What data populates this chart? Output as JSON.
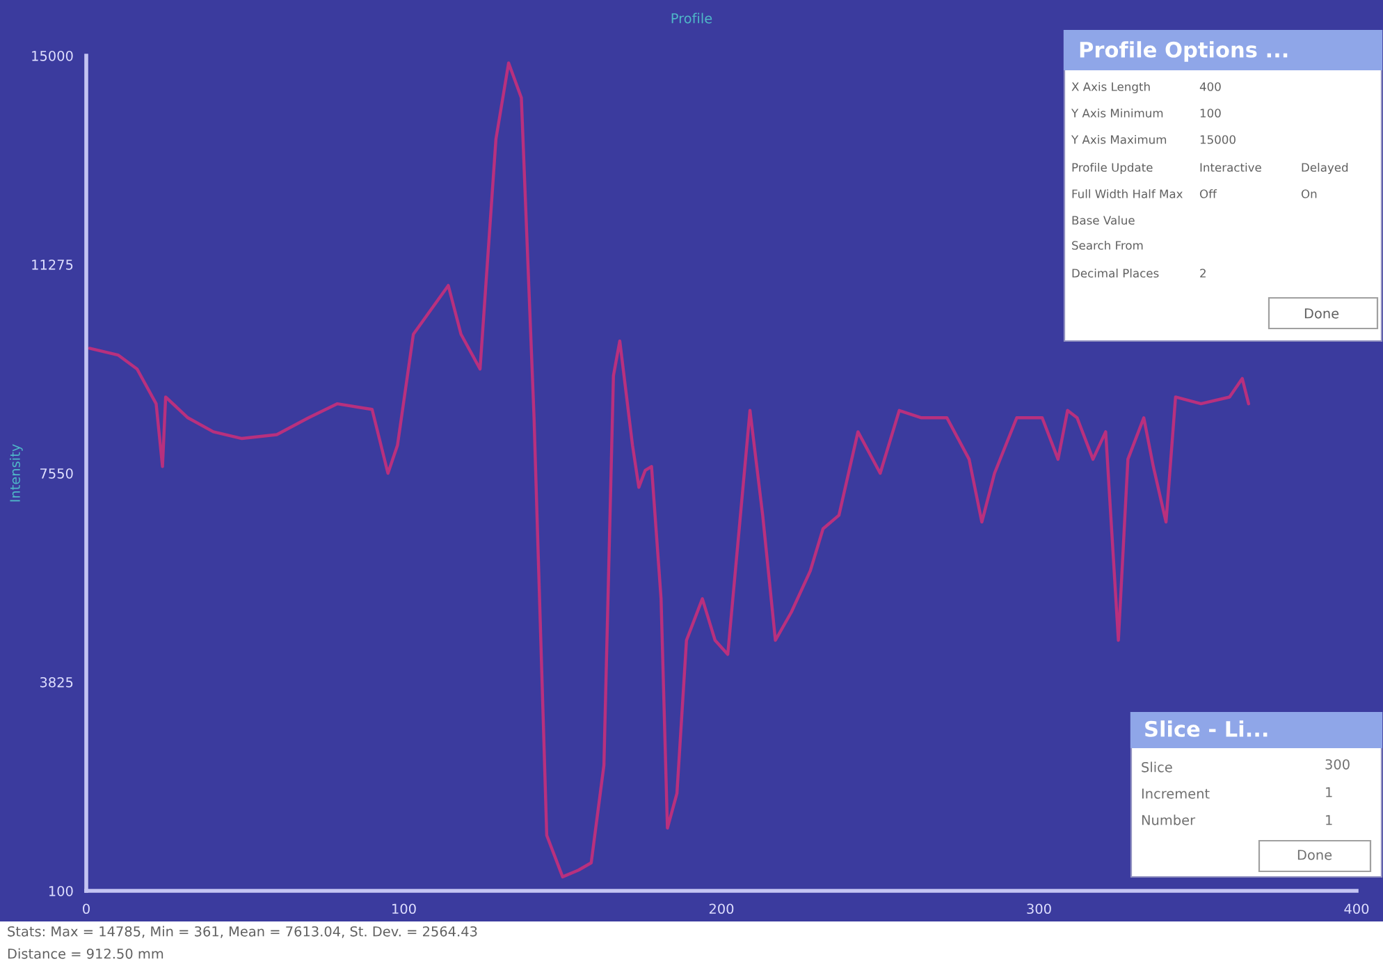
{
  "chart_data": {
    "type": "line",
    "title": "Profile",
    "ylabel": "Intensity",
    "x": [
      1,
      10,
      16,
      22,
      24,
      25,
      32,
      40,
      49,
      60,
      70,
      79,
      90,
      95,
      98,
      103,
      114,
      118,
      124,
      129,
      133,
      137,
      141,
      145,
      150,
      155,
      159,
      163,
      166,
      168,
      172,
      174,
      176,
      178,
      181,
      183,
      186,
      189,
      194,
      198,
      202,
      209,
      213,
      217,
      222,
      228,
      232,
      237,
      243,
      250,
      256,
      263,
      271,
      278,
      282,
      286,
      293,
      301,
      306,
      309,
      312,
      317,
      321,
      325,
      328,
      333,
      336,
      340,
      343,
      351,
      360,
      364,
      366
    ],
    "series": [
      {
        "color": "#b8307e",
        "values": [
          9780,
          9660,
          9410,
          8790,
          7670,
          8910,
          8540,
          8290,
          8170,
          8240,
          8540,
          8790,
          8690,
          7550,
          8050,
          10030,
          10900,
          10030,
          9410,
          13510,
          14870,
          14250,
          8540,
          1090,
          350,
          470,
          600,
          2340,
          9290,
          9910,
          8050,
          7300,
          7600,
          7670,
          5310,
          1220,
          1840,
          4570,
          5310,
          4570,
          4320,
          8670,
          6800,
          4570,
          5070,
          5810,
          6560,
          6800,
          8290,
          7550,
          8670,
          8540,
          8540,
          7800,
          6680,
          7550,
          8540,
          8540,
          7800,
          8670,
          8540,
          7800,
          8290,
          4570,
          7800,
          8540,
          7670,
          6680,
          8910,
          8790,
          8910,
          9240,
          8790
        ]
      }
    ],
    "xlim": [
      0,
      400
    ],
    "xticks": [
      0,
      100,
      200,
      300,
      400
    ],
    "ylim": [
      100,
      15000
    ],
    "yticks": [
      100,
      3825,
      7550,
      11275,
      15000
    ],
    "grid": false,
    "annotations": [
      "Stats: Max = 14785, Min = 361, Mean = 7613.04, St. Dev. = 2564.43",
      "Distance = 912.50 mm",
      "Profile Options ...",
      "X Axis Length",
      "400",
      "Y Axis Minimum",
      "100",
      "Y Axis Maximum",
      "15000",
      "Profile Update",
      "Interactive",
      "Delayed",
      "Full Width Half Max",
      "Off",
      "On",
      "Base Value",
      "Search From",
      "Decimal Places",
      "2",
      "Done",
      "Slice - Li...",
      "Slice",
      "300",
      "Increment",
      "1",
      "Number",
      "1",
      "Done"
    ]
  }
}
